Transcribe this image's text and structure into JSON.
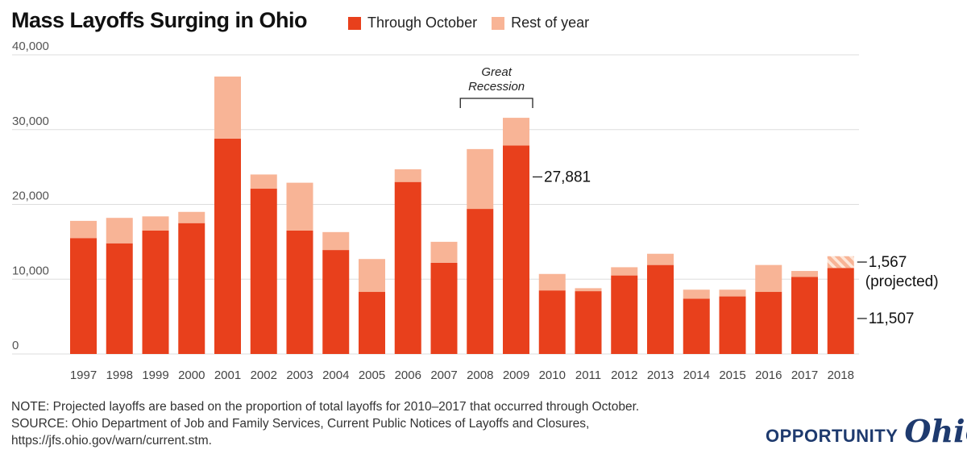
{
  "colors": {
    "through_october": "#e8401c",
    "rest_of_year": "#f8b496",
    "grid": "#dddddd",
    "logo": "#1e3a6e"
  },
  "chart_data": {
    "type": "bar",
    "stacked": true,
    "title": "Mass Layoffs Surging in Ohio",
    "categories": [
      "1997",
      "1998",
      "1999",
      "2000",
      "2001",
      "2002",
      "2003",
      "2004",
      "2005",
      "2006",
      "2007",
      "2008",
      "2009",
      "2010",
      "2011",
      "2012",
      "2013",
      "2014",
      "2015",
      "2016",
      "2017",
      "2018"
    ],
    "series": [
      {
        "name": "Through October",
        "values": [
          15500,
          14800,
          16500,
          17500,
          28800,
          22100,
          16500,
          13900,
          8300,
          23000,
          12200,
          19400,
          27881,
          8500,
          8400,
          10500,
          11900,
          7400,
          7700,
          8300,
          10300,
          11507
        ]
      },
      {
        "name": "Rest of year",
        "values": [
          2300,
          3400,
          1900,
          1500,
          8300,
          1900,
          6400,
          2400,
          4400,
          1700,
          2800,
          8000,
          3700,
          2200,
          400,
          1100,
          1500,
          1200,
          900,
          3600,
          800,
          1567
        ],
        "projected_last": true
      }
    ],
    "yticks": [
      "0",
      "10,000",
      "20,000",
      "30,000",
      "40,000"
    ],
    "ylim": [
      0,
      40000
    ],
    "grid": true,
    "legend_position": "top",
    "annotations": {
      "recession": "Great\nRecession",
      "label_2009": "27,881",
      "label_2018_rest": "1,567",
      "label_2018_rest_sub": "(projected)",
      "label_2018_oct": "11,507"
    }
  },
  "legend": {
    "through_october": "Through October",
    "rest_of_year": "Rest of year"
  },
  "footnote": {
    "note": "NOTE: Projected layoffs are based on the proportion of total layoffs for 2010–2017 that occurred through October.",
    "source1": "SOURCE: Ohio Department of Job and Family Services, Current Public Notices of Layoffs and Closures,",
    "source2": "https://jfs.ohio.gov/warn/current.stm."
  },
  "logo": {
    "text": "OPPORTUNITY",
    "script": "Ohio"
  }
}
